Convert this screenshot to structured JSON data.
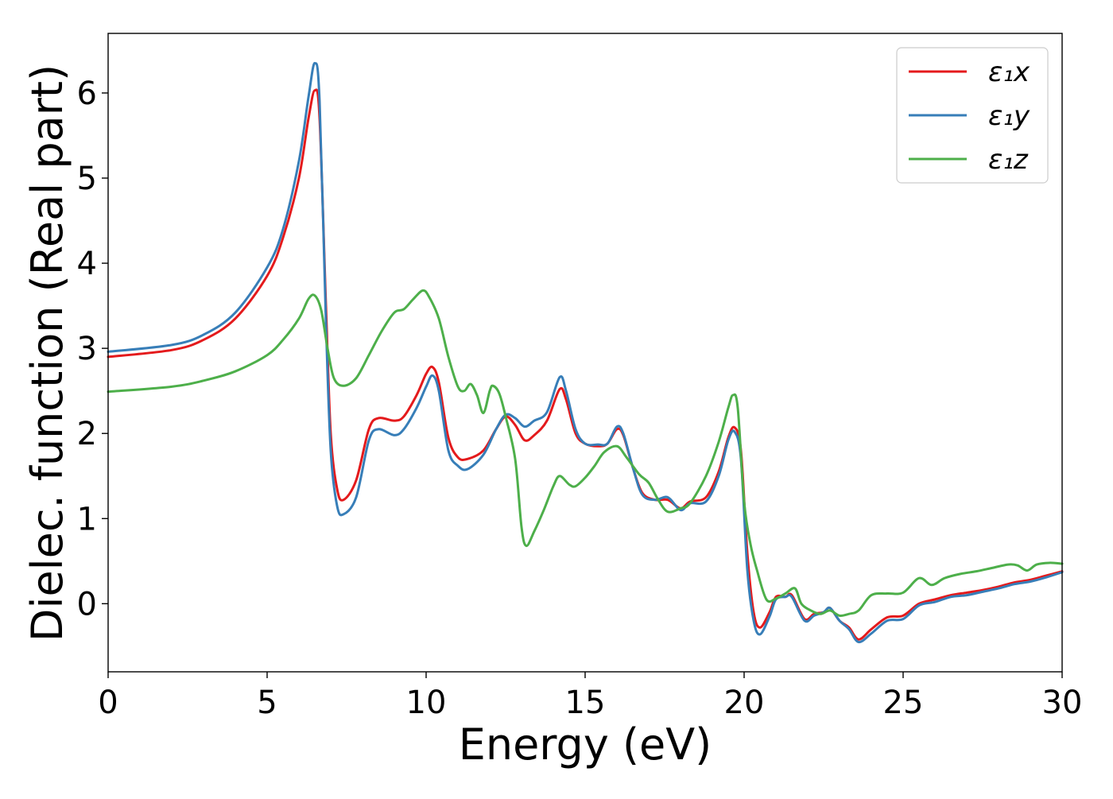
{
  "chart_data": {
    "type": "line",
    "xlabel": "Energy (eV)",
    "ylabel": "Dielec. function (Real part)",
    "xlim": [
      0,
      30
    ],
    "ylim": [
      -0.8,
      6.7
    ],
    "xticks": [
      0,
      5,
      10,
      15,
      20,
      25,
      30
    ],
    "yticks": [
      0,
      1,
      2,
      3,
      4,
      5,
      6
    ],
    "grid": false,
    "legend_position": "top-right",
    "series": [
      {
        "name": "ε₁x",
        "color": "#e41a1c",
        "points": [
          [
            0,
            2.9
          ],
          [
            2,
            2.98
          ],
          [
            3,
            3.1
          ],
          [
            4,
            3.35
          ],
          [
            5,
            3.85
          ],
          [
            5.5,
            4.3
          ],
          [
            6,
            5.0
          ],
          [
            6.3,
            5.7
          ],
          [
            6.5,
            6.03
          ],
          [
            6.65,
            5.7
          ],
          [
            6.85,
            3.5
          ],
          [
            7.0,
            2.0
          ],
          [
            7.2,
            1.35
          ],
          [
            7.4,
            1.22
          ],
          [
            7.8,
            1.45
          ],
          [
            8.2,
            2.05
          ],
          [
            8.5,
            2.18
          ],
          [
            9.0,
            2.15
          ],
          [
            9.3,
            2.2
          ],
          [
            9.7,
            2.45
          ],
          [
            10.0,
            2.7
          ],
          [
            10.2,
            2.78
          ],
          [
            10.4,
            2.6
          ],
          [
            10.7,
            1.95
          ],
          [
            11.0,
            1.72
          ],
          [
            11.3,
            1.7
          ],
          [
            11.8,
            1.8
          ],
          [
            12.2,
            2.05
          ],
          [
            12.5,
            2.2
          ],
          [
            12.8,
            2.1
          ],
          [
            13.1,
            1.92
          ],
          [
            13.4,
            1.98
          ],
          [
            13.8,
            2.15
          ],
          [
            14.2,
            2.52
          ],
          [
            14.4,
            2.4
          ],
          [
            14.7,
            2.0
          ],
          [
            15.0,
            1.88
          ],
          [
            15.4,
            1.85
          ],
          [
            15.7,
            1.88
          ],
          [
            16.0,
            2.05
          ],
          [
            16.2,
            1.98
          ],
          [
            16.5,
            1.6
          ],
          [
            16.8,
            1.3
          ],
          [
            17.2,
            1.22
          ],
          [
            17.6,
            1.22
          ],
          [
            18.0,
            1.12
          ],
          [
            18.3,
            1.2
          ],
          [
            18.8,
            1.25
          ],
          [
            19.2,
            1.55
          ],
          [
            19.5,
            1.95
          ],
          [
            19.7,
            2.07
          ],
          [
            19.9,
            1.8
          ],
          [
            20.1,
            0.6
          ],
          [
            20.3,
            -0.1
          ],
          [
            20.5,
            -0.28
          ],
          [
            20.8,
            -0.1
          ],
          [
            21.0,
            0.08
          ],
          [
            21.3,
            0.08
          ],
          [
            21.5,
            0.1
          ],
          [
            21.9,
            -0.18
          ],
          [
            22.2,
            -0.12
          ],
          [
            22.5,
            -0.1
          ],
          [
            22.7,
            -0.05
          ],
          [
            23.0,
            -0.2
          ],
          [
            23.3,
            -0.28
          ],
          [
            23.6,
            -0.42
          ],
          [
            24.0,
            -0.3
          ],
          [
            24.5,
            -0.16
          ],
          [
            25.0,
            -0.14
          ],
          [
            25.5,
            0.0
          ],
          [
            26.0,
            0.05
          ],
          [
            26.5,
            0.1
          ],
          [
            27.0,
            0.13
          ],
          [
            27.5,
            0.16
          ],
          [
            28.0,
            0.2
          ],
          [
            28.5,
            0.25
          ],
          [
            29.0,
            0.28
          ],
          [
            29.5,
            0.33
          ],
          [
            30,
            0.38
          ]
        ]
      },
      {
        "name": "ε₁y",
        "color": "#377eb8",
        "points": [
          [
            0,
            2.96
          ],
          [
            2,
            3.04
          ],
          [
            3,
            3.16
          ],
          [
            4,
            3.42
          ],
          [
            5,
            3.95
          ],
          [
            5.5,
            4.4
          ],
          [
            6,
            5.2
          ],
          [
            6.3,
            5.95
          ],
          [
            6.5,
            6.35
          ],
          [
            6.65,
            5.9
          ],
          [
            6.85,
            3.3
          ],
          [
            7.0,
            1.8
          ],
          [
            7.2,
            1.15
          ],
          [
            7.4,
            1.05
          ],
          [
            7.8,
            1.25
          ],
          [
            8.2,
            1.92
          ],
          [
            8.5,
            2.05
          ],
          [
            9.0,
            1.98
          ],
          [
            9.3,
            2.05
          ],
          [
            9.7,
            2.3
          ],
          [
            10.0,
            2.55
          ],
          [
            10.2,
            2.68
          ],
          [
            10.4,
            2.5
          ],
          [
            10.7,
            1.8
          ],
          [
            11.0,
            1.62
          ],
          [
            11.3,
            1.58
          ],
          [
            11.8,
            1.75
          ],
          [
            12.2,
            2.05
          ],
          [
            12.5,
            2.22
          ],
          [
            12.8,
            2.18
          ],
          [
            13.1,
            2.08
          ],
          [
            13.4,
            2.15
          ],
          [
            13.8,
            2.25
          ],
          [
            14.2,
            2.66
          ],
          [
            14.4,
            2.5
          ],
          [
            14.7,
            2.05
          ],
          [
            15.0,
            1.88
          ],
          [
            15.4,
            1.87
          ],
          [
            15.7,
            1.88
          ],
          [
            16.0,
            2.08
          ],
          [
            16.2,
            2.0
          ],
          [
            16.5,
            1.6
          ],
          [
            16.8,
            1.28
          ],
          [
            17.2,
            1.22
          ],
          [
            17.6,
            1.25
          ],
          [
            18.0,
            1.1
          ],
          [
            18.3,
            1.18
          ],
          [
            18.8,
            1.2
          ],
          [
            19.2,
            1.5
          ],
          [
            19.5,
            1.92
          ],
          [
            19.7,
            2.02
          ],
          [
            19.9,
            1.7
          ],
          [
            20.1,
            0.4
          ],
          [
            20.3,
            -0.2
          ],
          [
            20.5,
            -0.36
          ],
          [
            20.8,
            -0.15
          ],
          [
            21.0,
            0.05
          ],
          [
            21.3,
            0.08
          ],
          [
            21.5,
            0.08
          ],
          [
            21.9,
            -0.2
          ],
          [
            22.2,
            -0.14
          ],
          [
            22.5,
            -0.1
          ],
          [
            22.7,
            -0.05
          ],
          [
            23.0,
            -0.2
          ],
          [
            23.3,
            -0.3
          ],
          [
            23.6,
            -0.45
          ],
          [
            24.0,
            -0.35
          ],
          [
            24.5,
            -0.2
          ],
          [
            25.0,
            -0.18
          ],
          [
            25.5,
            -0.02
          ],
          [
            26.0,
            0.02
          ],
          [
            26.5,
            0.08
          ],
          [
            27.0,
            0.1
          ],
          [
            27.5,
            0.14
          ],
          [
            28.0,
            0.18
          ],
          [
            28.5,
            0.23
          ],
          [
            29.0,
            0.26
          ],
          [
            29.5,
            0.31
          ],
          [
            30,
            0.37
          ]
        ]
      },
      {
        "name": "ε₁z",
        "color": "#4daf4a",
        "points": [
          [
            0,
            2.49
          ],
          [
            2,
            2.55
          ],
          [
            3,
            2.62
          ],
          [
            4,
            2.73
          ],
          [
            5,
            2.92
          ],
          [
            5.5,
            3.1
          ],
          [
            6,
            3.35
          ],
          [
            6.3,
            3.58
          ],
          [
            6.5,
            3.62
          ],
          [
            6.7,
            3.45
          ],
          [
            6.9,
            3.0
          ],
          [
            7.1,
            2.65
          ],
          [
            7.4,
            2.56
          ],
          [
            7.8,
            2.65
          ],
          [
            8.2,
            2.92
          ],
          [
            8.6,
            3.2
          ],
          [
            9.0,
            3.42
          ],
          [
            9.3,
            3.46
          ],
          [
            9.6,
            3.58
          ],
          [
            9.9,
            3.68
          ],
          [
            10.1,
            3.6
          ],
          [
            10.4,
            3.35
          ],
          [
            10.7,
            2.9
          ],
          [
            11.0,
            2.55
          ],
          [
            11.2,
            2.5
          ],
          [
            11.4,
            2.58
          ],
          [
            11.6,
            2.45
          ],
          [
            11.8,
            2.24
          ],
          [
            12.0,
            2.5
          ],
          [
            12.1,
            2.56
          ],
          [
            12.3,
            2.47
          ],
          [
            12.5,
            2.2
          ],
          [
            12.8,
            1.7
          ],
          [
            13.0,
            0.9
          ],
          [
            13.15,
            0.68
          ],
          [
            13.4,
            0.85
          ],
          [
            13.7,
            1.1
          ],
          [
            14.0,
            1.38
          ],
          [
            14.2,
            1.5
          ],
          [
            14.5,
            1.4
          ],
          [
            14.7,
            1.38
          ],
          [
            15.0,
            1.48
          ],
          [
            15.3,
            1.62
          ],
          [
            15.6,
            1.78
          ],
          [
            16.0,
            1.85
          ],
          [
            16.3,
            1.72
          ],
          [
            16.7,
            1.52
          ],
          [
            17.0,
            1.42
          ],
          [
            17.3,
            1.22
          ],
          [
            17.6,
            1.08
          ],
          [
            18.0,
            1.12
          ],
          [
            18.3,
            1.18
          ],
          [
            18.8,
            1.5
          ],
          [
            19.2,
            1.9
          ],
          [
            19.5,
            2.3
          ],
          [
            19.65,
            2.45
          ],
          [
            19.8,
            2.3
          ],
          [
            20.0,
            1.2
          ],
          [
            20.2,
            0.7
          ],
          [
            20.4,
            0.4
          ],
          [
            20.7,
            0.05
          ],
          [
            21.0,
            0.06
          ],
          [
            21.3,
            0.12
          ],
          [
            21.6,
            0.18
          ],
          [
            21.8,
            0.0
          ],
          [
            22.1,
            -0.08
          ],
          [
            22.4,
            -0.12
          ],
          [
            22.7,
            -0.08
          ],
          [
            23.0,
            -0.14
          ],
          [
            23.3,
            -0.12
          ],
          [
            23.6,
            -0.08
          ],
          [
            24.0,
            0.1
          ],
          [
            24.5,
            0.12
          ],
          [
            25.0,
            0.13
          ],
          [
            25.5,
            0.3
          ],
          [
            25.9,
            0.22
          ],
          [
            26.3,
            0.3
          ],
          [
            26.8,
            0.35
          ],
          [
            27.3,
            0.38
          ],
          [
            27.8,
            0.42
          ],
          [
            28.3,
            0.46
          ],
          [
            28.6,
            0.45
          ],
          [
            28.9,
            0.39
          ],
          [
            29.2,
            0.46
          ],
          [
            29.6,
            0.48
          ],
          [
            30,
            0.47
          ]
        ]
      }
    ]
  }
}
